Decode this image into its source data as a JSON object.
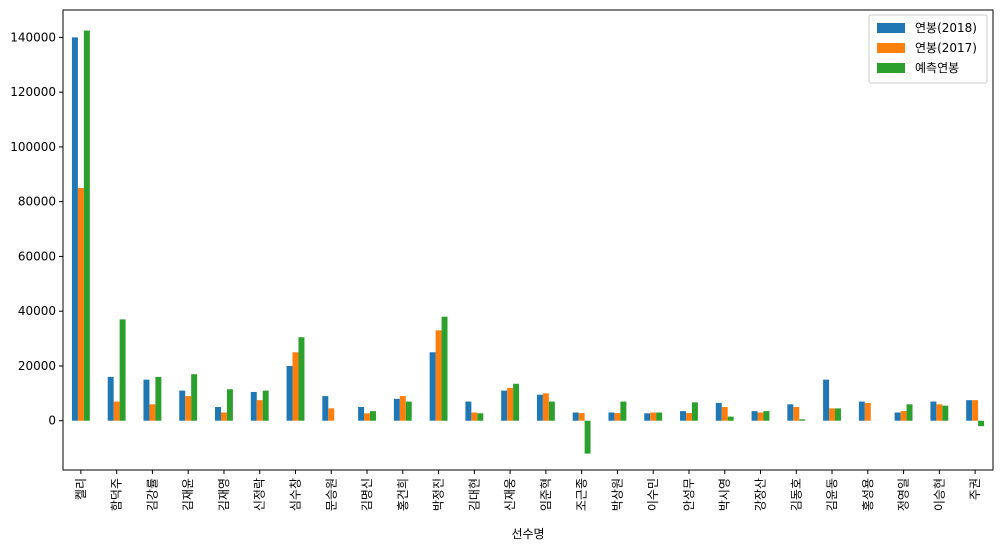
{
  "chart_data": {
    "type": "bar",
    "xlabel": "선수명",
    "ylabel": "",
    "ylim": [
      -18000,
      150000
    ],
    "yticks": [
      0,
      20000,
      40000,
      60000,
      80000,
      100000,
      120000,
      140000
    ],
    "ytick_labels": [
      "0",
      "20000",
      "40000",
      "60000",
      "80000",
      "100000",
      "120000",
      "140000"
    ],
    "grid": false,
    "legend_position": "top-right",
    "categories": [
      "켈리",
      "함덕주",
      "김강률",
      "김재윤",
      "김재영",
      "신정락",
      "심수창",
      "문승원",
      "김명신",
      "홍건희",
      "박정진",
      "김대현",
      "신재웅",
      "임준혁",
      "조근종",
      "박상원",
      "이수민",
      "안성무",
      "박시영",
      "강장산",
      "김동호",
      "김윤동",
      "홍성용",
      "정영일",
      "이승현",
      "주권"
    ],
    "series": [
      {
        "name": "연봉(2018)",
        "color": "#1f77b4",
        "values": [
          140000,
          16000,
          15000,
          11000,
          5000,
          10500,
          20000,
          9000,
          5000,
          8000,
          25000,
          7000,
          11000,
          9500,
          3000,
          3000,
          2700,
          3500,
          6500,
          3500,
          6000,
          15000,
          7000,
          3000,
          7000,
          7500
        ]
      },
      {
        "name": "연봉(2017)",
        "color": "#ff7f0e",
        "values": [
          85000,
          7000,
          6000,
          9000,
          3000,
          7500,
          25000,
          4500,
          2700,
          9000,
          33000,
          3000,
          12000,
          10000,
          2800,
          2800,
          3000,
          2800,
          5000,
          3000,
          5000,
          4500,
          6500,
          3500,
          6000,
          7500
        ]
      },
      {
        "name": "예측연봉",
        "color": "#2ca02c",
        "values": [
          142500,
          37000,
          16000,
          17000,
          11500,
          11000,
          30500,
          0,
          3500,
          7000,
          38000,
          2700,
          13500,
          7000,
          -12000,
          7000,
          3000,
          6700,
          1500,
          3500,
          500,
          4500,
          0,
          6000,
          5500,
          -2000
        ]
      }
    ]
  }
}
